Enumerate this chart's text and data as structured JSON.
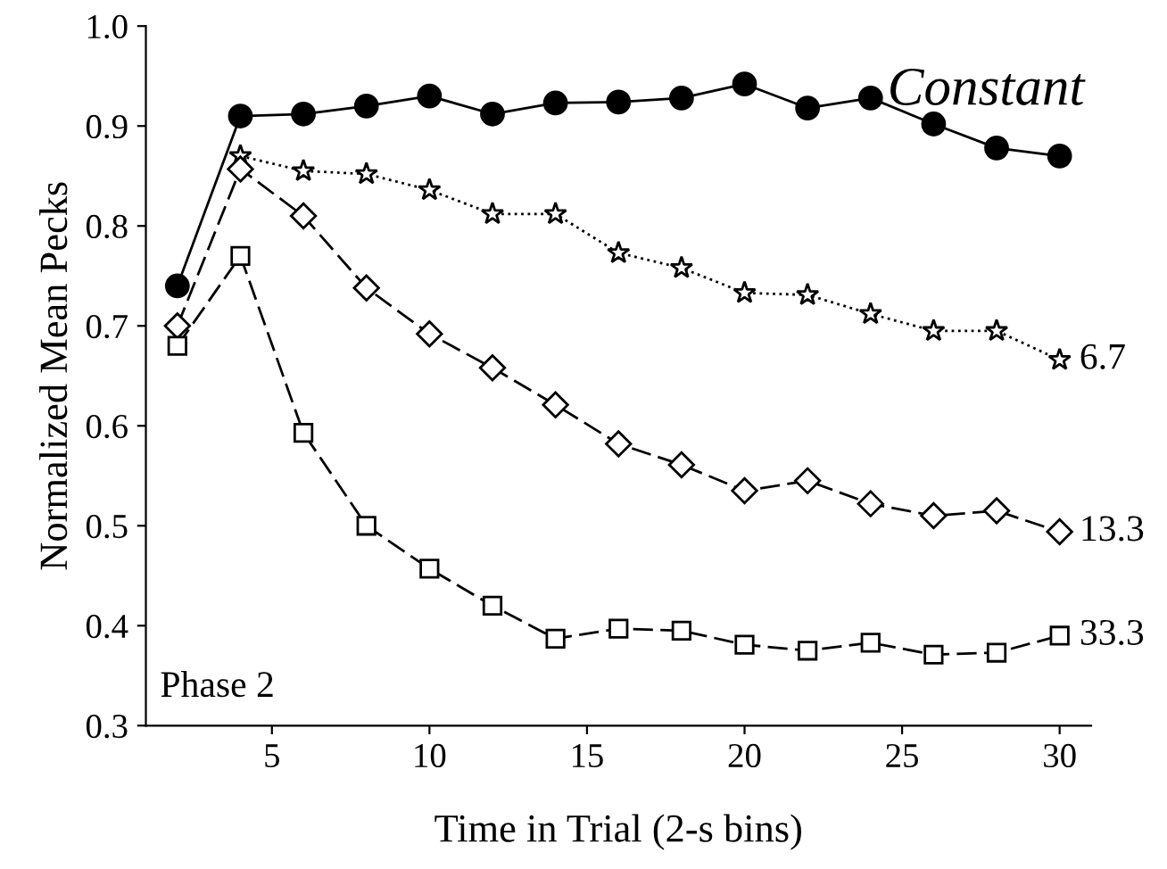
{
  "chart_data": {
    "type": "line",
    "xlabel": "Time in Trial (2-s bins)",
    "ylabel": "Normalized Mean Pecks",
    "x": [
      2,
      4,
      6,
      8,
      10,
      12,
      14,
      16,
      18,
      20,
      22,
      24,
      26,
      28,
      30
    ],
    "series": [
      {
        "name": "Constant",
        "color": "#000000",
        "marker": "circle",
        "line_style": "solid",
        "values": [
          0.74,
          0.91,
          0.912,
          0.92,
          0.93,
          0.912,
          0.923,
          0.924,
          0.928,
          0.942,
          0.918,
          0.928,
          0.902,
          0.878,
          0.87
        ]
      },
      {
        "name": "6.7",
        "color": "#000000",
        "marker": "star",
        "line_style": "dotted",
        "values": [
          null,
          0.87,
          0.855,
          0.852,
          0.836,
          0.812,
          0.812,
          0.773,
          0.758,
          0.733,
          0.731,
          0.712,
          0.695,
          0.695,
          0.666
        ]
      },
      {
        "name": "13.3",
        "color": "#000000",
        "marker": "diamond",
        "line_style": "dashed",
        "values": [
          0.7,
          0.857,
          0.81,
          0.738,
          0.692,
          0.658,
          0.621,
          0.582,
          0.561,
          0.535,
          0.545,
          0.522,
          0.51,
          0.515,
          0.494
        ]
      },
      {
        "name": "33.3",
        "color": "#000000",
        "marker": "square",
        "line_style": "dashed",
        "values": [
          0.68,
          0.77,
          0.593,
          0.5,
          0.457,
          0.42,
          0.387,
          0.397,
          0.395,
          0.381,
          0.375,
          0.383,
          0.371,
          0.373,
          0.39
        ]
      }
    ],
    "annotations": [
      "Phase 2"
    ],
    "xlim": [
      1,
      31
    ],
    "ylim": [
      0.3,
      1.0
    ],
    "xticks": [
      5,
      10,
      15,
      20,
      25,
      30
    ],
    "yticks": [
      0.3,
      0.4,
      0.5,
      0.6,
      0.7,
      0.8,
      0.9,
      {
        "value": 1.0,
        "label": "1.0"
      }
    ],
    "grid": false,
    "legend": false
  }
}
